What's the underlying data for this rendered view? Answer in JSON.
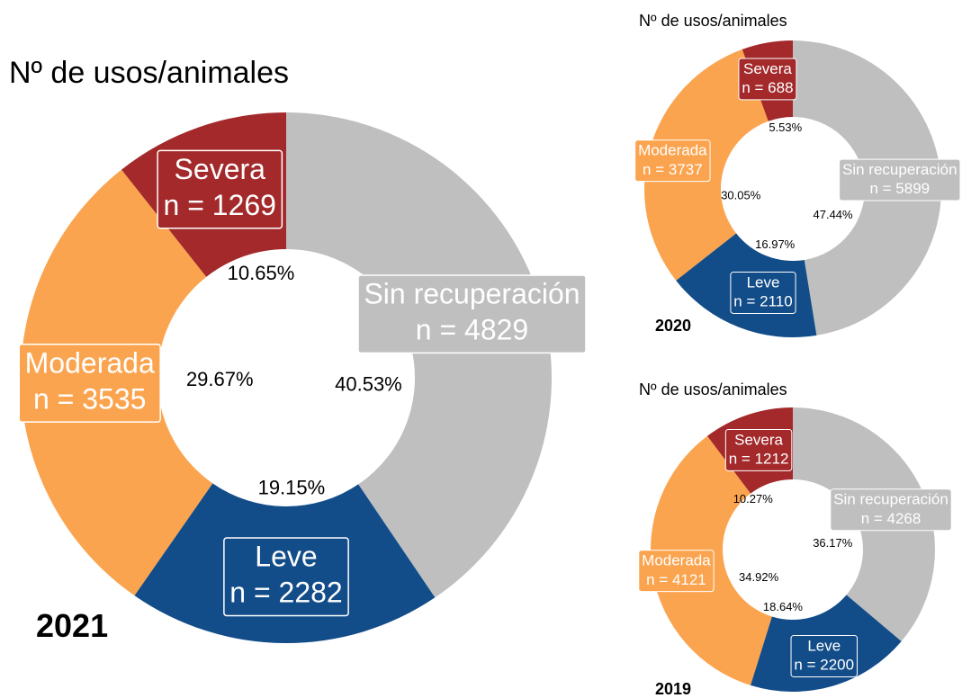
{
  "chart_data": [
    {
      "type": "pie",
      "title": "Nº de usos/animales",
      "annotation": "2021",
      "categories": [
        "Sin recuperación",
        "Leve",
        "Moderada",
        "Severa"
      ],
      "values": [
        4829,
        2282,
        3535,
        1269
      ],
      "value_labels": [
        "n = 4829",
        "n = 2282",
        "n = 3535",
        "n = 1269"
      ],
      "percents": [
        40.53,
        19.15,
        29.67,
        10.65
      ],
      "percent_labels": [
        "40.53%",
        "19.15%",
        "29.67%",
        "10.65%"
      ],
      "colors": [
        "#bfbfbf",
        "#134d89",
        "#fba44f",
        "#a3292b"
      ]
    },
    {
      "type": "pie",
      "title": "Nº de usos/animales",
      "annotation": "2020",
      "categories": [
        "Sin recuperación",
        "Leve",
        "Moderada",
        "Severa"
      ],
      "values": [
        5899,
        2110,
        3737,
        688
      ],
      "value_labels": [
        "n = 5899",
        "n = 2110",
        "n = 3737",
        "n = 688"
      ],
      "percents": [
        47.44,
        16.97,
        30.05,
        5.53
      ],
      "percent_labels": [
        "47.44%",
        "16.97%",
        "30.05%",
        "5.53%"
      ],
      "colors": [
        "#bfbfbf",
        "#134d89",
        "#fba44f",
        "#a3292b"
      ]
    },
    {
      "type": "pie",
      "title": "Nº de usos/animales",
      "annotation": "2019",
      "categories": [
        "Sin recuperación",
        "Leve",
        "Moderada",
        "Severa"
      ],
      "values": [
        4268,
        2200,
        4121,
        1212
      ],
      "value_labels": [
        "n = 4268",
        "n = 2200",
        "n = 4121",
        "n = 1212"
      ],
      "percents": [
        36.17,
        18.64,
        34.92,
        10.27
      ],
      "percent_labels": [
        "36.17%",
        "18.64%",
        "34.92%",
        "10.27%"
      ],
      "colors": [
        "#bfbfbf",
        "#134d89",
        "#fba44f",
        "#a3292b"
      ]
    }
  ]
}
